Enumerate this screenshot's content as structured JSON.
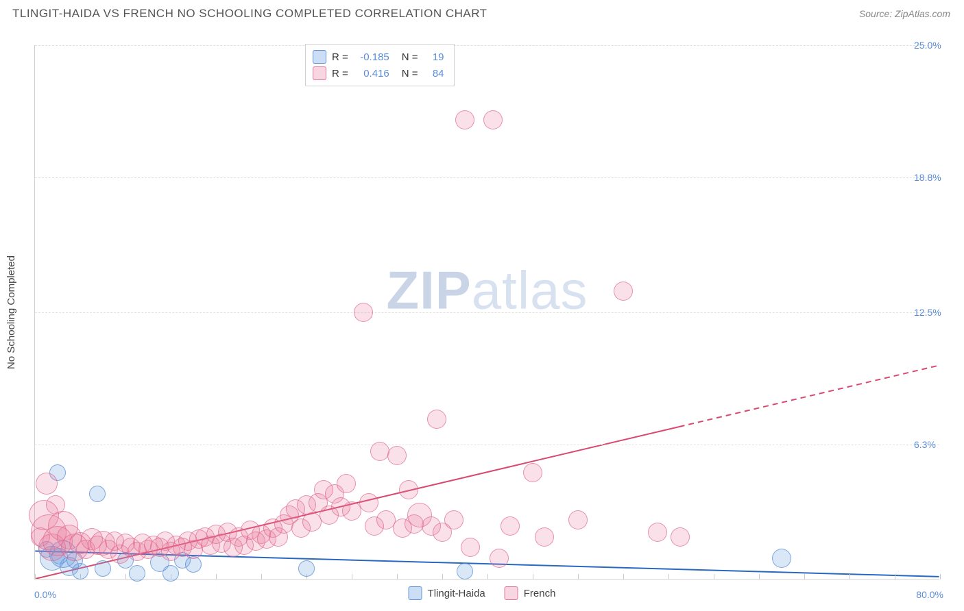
{
  "title": "TLINGIT-HAIDA VS FRENCH NO SCHOOLING COMPLETED CORRELATION CHART",
  "source_label": "Source: ZipAtlas.com",
  "watermark": {
    "part1": "ZIP",
    "part2": "atlas"
  },
  "y_axis_title": "No Schooling Completed",
  "chart": {
    "type": "scatter",
    "xlim": [
      0,
      80
    ],
    "ylim": [
      0,
      25
    ],
    "background_color": "#ffffff",
    "grid_color": "#e0e0e0",
    "axis_label_color": "#5b8dd6",
    "grid_y": [
      6.3,
      12.5,
      18.8,
      25.0
    ],
    "y_tick_labels": [
      "6.3%",
      "12.5%",
      "18.8%",
      "25.0%"
    ],
    "x_tick_min_label": "0.0%",
    "x_tick_max_label": "80.0%",
    "x_minor_tick_step": 4,
    "series": [
      {
        "name": "Tlingit-Haida",
        "color_fill": "rgba(106,160,225,0.25)",
        "color_stroke": "rgba(84,140,212,0.7)",
        "color_hex": "#6aa0e1",
        "stroke_hex": "#548cd4",
        "R": -0.185,
        "N": 19,
        "trend": {
          "x1": 0,
          "y1": 1.3,
          "x2": 80,
          "y2": 0.1,
          "line_color": "#2968c0",
          "line_width": 2
        },
        "points": [
          {
            "x": 1.0,
            "y": 1.4,
            "r": 12
          },
          {
            "x": 1.5,
            "y": 1.0,
            "r": 18
          },
          {
            "x": 2.0,
            "y": 5.0,
            "r": 12
          },
          {
            "x": 2.2,
            "y": 1.1,
            "r": 12
          },
          {
            "x": 2.5,
            "y": 1.2,
            "r": 20
          },
          {
            "x": 3.0,
            "y": 0.6,
            "r": 14
          },
          {
            "x": 3.5,
            "y": 0.9,
            "r": 12
          },
          {
            "x": 4.0,
            "y": 0.4,
            "r": 12
          },
          {
            "x": 5.5,
            "y": 4.0,
            "r": 12
          },
          {
            "x": 6.0,
            "y": 0.5,
            "r": 12
          },
          {
            "x": 8.0,
            "y": 0.9,
            "r": 12
          },
          {
            "x": 9.0,
            "y": 0.3,
            "r": 12
          },
          {
            "x": 11.0,
            "y": 0.8,
            "r": 14
          },
          {
            "x": 12.0,
            "y": 0.3,
            "r": 12
          },
          {
            "x": 13.0,
            "y": 0.9,
            "r": 12
          },
          {
            "x": 14.0,
            "y": 0.7,
            "r": 12
          },
          {
            "x": 24.0,
            "y": 0.5,
            "r": 12
          },
          {
            "x": 38.0,
            "y": 0.4,
            "r": 12
          },
          {
            "x": 66.0,
            "y": 1.0,
            "r": 14
          }
        ]
      },
      {
        "name": "French",
        "color_fill": "rgba(232,120,155,0.22)",
        "color_stroke": "rgba(222,100,140,0.65)",
        "color_hex": "#e8789b",
        "stroke_hex": "#de648c",
        "R": 0.416,
        "N": 84,
        "trend": {
          "x1": 0,
          "y1": 0.0,
          "x2": 80,
          "y2": 10.0,
          "solid_until_x": 57,
          "line_color": "#d9486f",
          "line_width": 2
        },
        "points": [
          {
            "x": 0.5,
            "y": 2.0,
            "r": 14
          },
          {
            "x": 0.8,
            "y": 3.0,
            "r": 22
          },
          {
            "x": 1.0,
            "y": 4.5,
            "r": 16
          },
          {
            "x": 1.2,
            "y": 2.2,
            "r": 26
          },
          {
            "x": 1.5,
            "y": 1.5,
            "r": 20
          },
          {
            "x": 1.8,
            "y": 3.5,
            "r": 14
          },
          {
            "x": 2.0,
            "y": 1.8,
            "r": 22
          },
          {
            "x": 2.5,
            "y": 2.5,
            "r": 22
          },
          {
            "x": 3.0,
            "y": 2.0,
            "r": 18
          },
          {
            "x": 3.5,
            "y": 1.5,
            "r": 20
          },
          {
            "x": 4.0,
            "y": 1.7,
            "r": 16
          },
          {
            "x": 4.5,
            "y": 1.4,
            "r": 14
          },
          {
            "x": 5.0,
            "y": 1.9,
            "r": 16
          },
          {
            "x": 5.5,
            "y": 1.6,
            "r": 14
          },
          {
            "x": 6.0,
            "y": 1.7,
            "r": 18
          },
          {
            "x": 6.5,
            "y": 1.4,
            "r": 14
          },
          {
            "x": 7.0,
            "y": 1.8,
            "r": 14
          },
          {
            "x": 7.5,
            "y": 1.2,
            "r": 14
          },
          {
            "x": 8.0,
            "y": 1.7,
            "r": 14
          },
          {
            "x": 8.5,
            "y": 1.5,
            "r": 14
          },
          {
            "x": 9.0,
            "y": 1.3,
            "r": 14
          },
          {
            "x": 9.5,
            "y": 1.7,
            "r": 14
          },
          {
            "x": 10.0,
            "y": 1.4,
            "r": 14
          },
          {
            "x": 10.5,
            "y": 1.6,
            "r": 14
          },
          {
            "x": 11.0,
            "y": 1.5,
            "r": 14
          },
          {
            "x": 11.5,
            "y": 1.8,
            "r": 14
          },
          {
            "x": 12.0,
            "y": 1.3,
            "r": 14
          },
          {
            "x": 12.5,
            "y": 1.6,
            "r": 14
          },
          {
            "x": 13.0,
            "y": 1.5,
            "r": 14
          },
          {
            "x": 13.5,
            "y": 1.8,
            "r": 14
          },
          {
            "x": 14.0,
            "y": 1.4,
            "r": 14
          },
          {
            "x": 14.5,
            "y": 1.9,
            "r": 14
          },
          {
            "x": 15.0,
            "y": 2.0,
            "r": 14
          },
          {
            "x": 15.5,
            "y": 1.6,
            "r": 14
          },
          {
            "x": 16.0,
            "y": 2.1,
            "r": 14
          },
          {
            "x": 16.5,
            "y": 1.7,
            "r": 14
          },
          {
            "x": 17.0,
            "y": 2.2,
            "r": 14
          },
          {
            "x": 17.5,
            "y": 1.5,
            "r": 14
          },
          {
            "x": 18.0,
            "y": 2.0,
            "r": 14
          },
          {
            "x": 18.5,
            "y": 1.6,
            "r": 14
          },
          {
            "x": 19.0,
            "y": 2.3,
            "r": 14
          },
          {
            "x": 19.5,
            "y": 1.8,
            "r": 14
          },
          {
            "x": 20.0,
            "y": 2.1,
            "r": 14
          },
          {
            "x": 20.5,
            "y": 1.9,
            "r": 14
          },
          {
            "x": 21.0,
            "y": 2.4,
            "r": 14
          },
          {
            "x": 21.5,
            "y": 2.0,
            "r": 14
          },
          {
            "x": 22.0,
            "y": 2.6,
            "r": 14
          },
          {
            "x": 22.5,
            "y": 3.0,
            "r": 14
          },
          {
            "x": 23.0,
            "y": 3.3,
            "r": 14
          },
          {
            "x": 23.5,
            "y": 2.4,
            "r": 14
          },
          {
            "x": 24.0,
            "y": 3.5,
            "r": 14
          },
          {
            "x": 24.5,
            "y": 2.7,
            "r": 14
          },
          {
            "x": 25.0,
            "y": 3.6,
            "r": 14
          },
          {
            "x": 25.5,
            "y": 4.2,
            "r": 14
          },
          {
            "x": 26.0,
            "y": 3.0,
            "r": 14
          },
          {
            "x": 26.5,
            "y": 4.0,
            "r": 14
          },
          {
            "x": 27.0,
            "y": 3.4,
            "r": 14
          },
          {
            "x": 27.5,
            "y": 4.5,
            "r": 14
          },
          {
            "x": 28.0,
            "y": 3.2,
            "r": 14
          },
          {
            "x": 29.0,
            "y": 12.5,
            "r": 14
          },
          {
            "x": 29.5,
            "y": 3.6,
            "r": 14
          },
          {
            "x": 30.0,
            "y": 2.5,
            "r": 14
          },
          {
            "x": 30.5,
            "y": 6.0,
            "r": 14
          },
          {
            "x": 31.0,
            "y": 2.8,
            "r": 14
          },
          {
            "x": 32.0,
            "y": 5.8,
            "r": 14
          },
          {
            "x": 32.5,
            "y": 2.4,
            "r": 14
          },
          {
            "x": 33.0,
            "y": 4.2,
            "r": 14
          },
          {
            "x": 33.5,
            "y": 2.6,
            "r": 14
          },
          {
            "x": 34.0,
            "y": 3.0,
            "r": 18
          },
          {
            "x": 35.0,
            "y": 2.5,
            "r": 14
          },
          {
            "x": 35.5,
            "y": 7.5,
            "r": 14
          },
          {
            "x": 36.0,
            "y": 2.2,
            "r": 14
          },
          {
            "x": 37.0,
            "y": 2.8,
            "r": 14
          },
          {
            "x": 38.0,
            "y": 21.5,
            "r": 14
          },
          {
            "x": 38.5,
            "y": 1.5,
            "r": 14
          },
          {
            "x": 40.5,
            "y": 21.5,
            "r": 14
          },
          {
            "x": 41.0,
            "y": 1.0,
            "r": 14
          },
          {
            "x": 42.0,
            "y": 2.5,
            "r": 14
          },
          {
            "x": 44.0,
            "y": 5.0,
            "r": 14
          },
          {
            "x": 45.0,
            "y": 2.0,
            "r": 14
          },
          {
            "x": 48.0,
            "y": 2.8,
            "r": 14
          },
          {
            "x": 52.0,
            "y": 13.5,
            "r": 14
          },
          {
            "x": 55.0,
            "y": 2.2,
            "r": 14
          },
          {
            "x": 57.0,
            "y": 2.0,
            "r": 14
          }
        ]
      }
    ]
  },
  "legend_top": {
    "rows": [
      {
        "series_idx": 0,
        "R_label": "R =",
        "R_val": "-0.185",
        "N_label": "N =",
        "N_val": "19"
      },
      {
        "series_idx": 1,
        "R_label": "R =",
        "R_val": "0.416",
        "N_label": "N =",
        "N_val": "84"
      }
    ]
  },
  "legend_bottom": {
    "items": [
      {
        "series_idx": 0,
        "label": "Tlingit-Haida"
      },
      {
        "series_idx": 1,
        "label": "French"
      }
    ]
  }
}
